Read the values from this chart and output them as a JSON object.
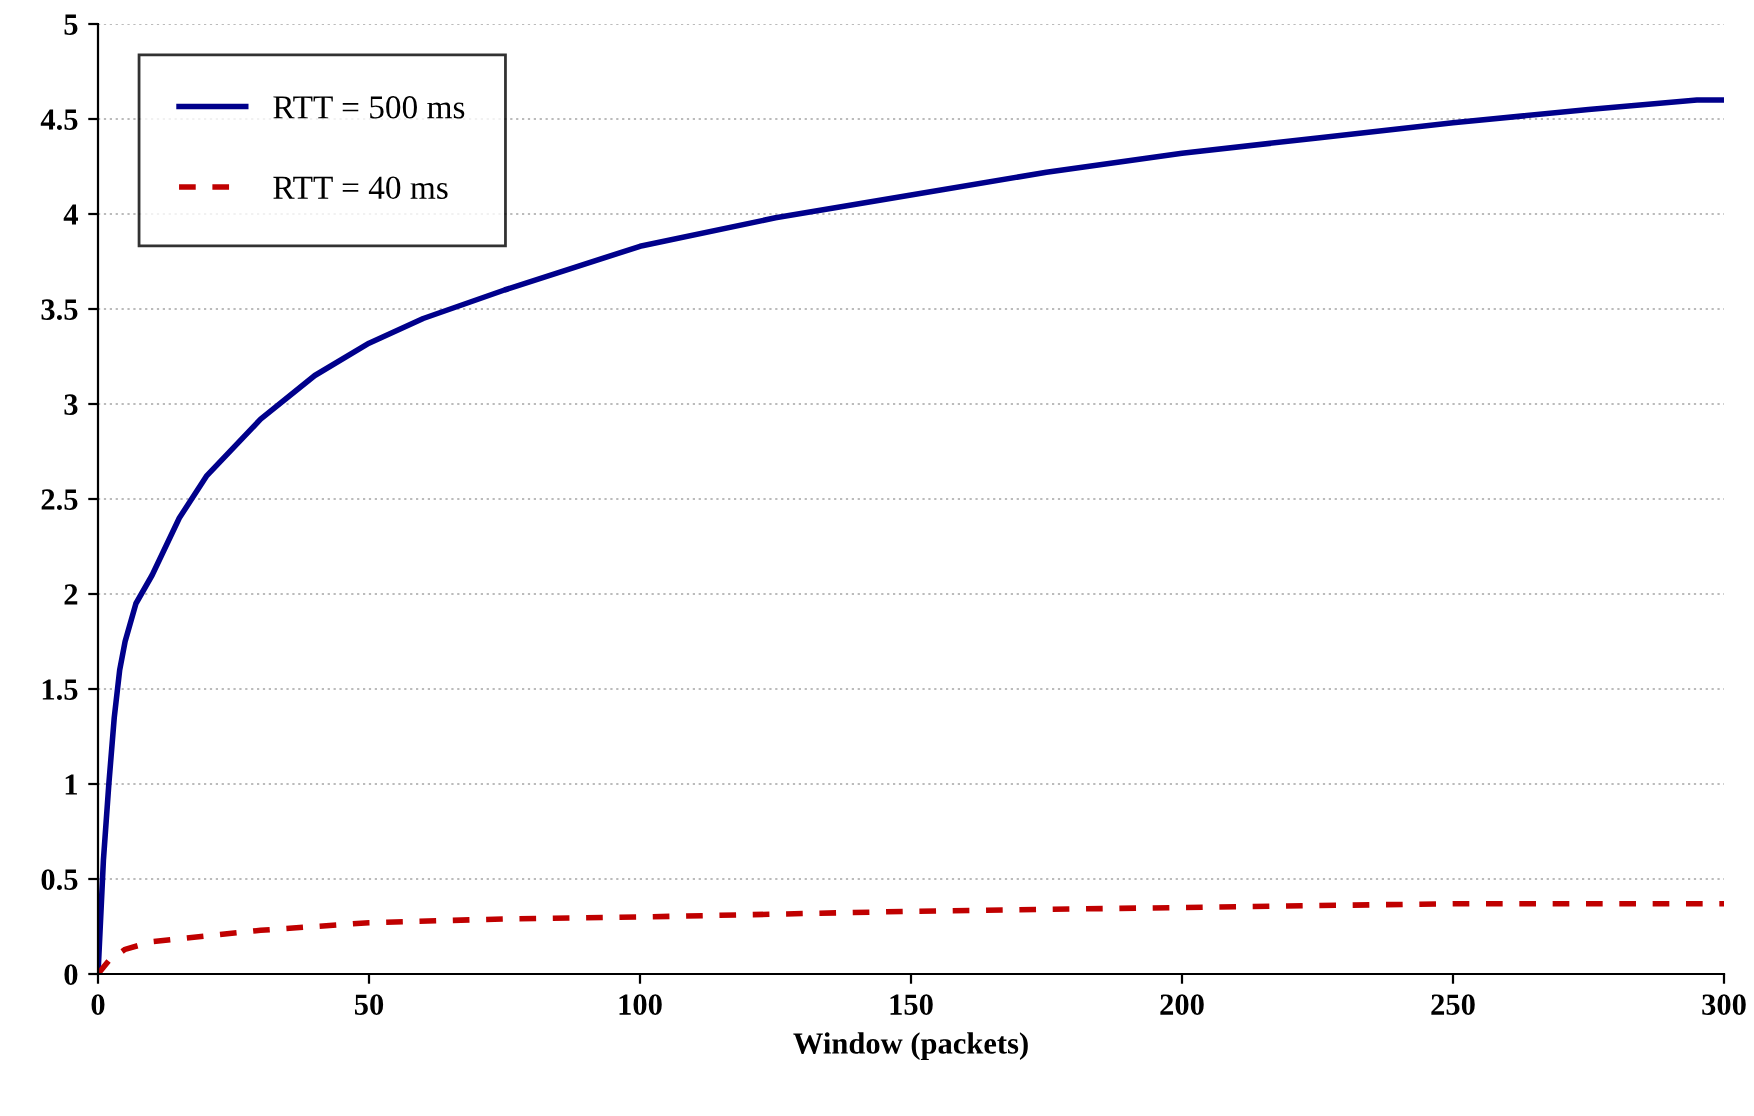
{
  "chart_data": {
    "type": "line",
    "xlabel": "Window (packets)",
    "xlim": [
      0,
      300
    ],
    "xticks": [
      0,
      50,
      100,
      150,
      200,
      250,
      300
    ],
    "ylim": [
      0,
      5
    ],
    "yticks": [
      0,
      0.5,
      1,
      1.5,
      2,
      2.5,
      3,
      3.5,
      4,
      4.5,
      5
    ],
    "grid": "y",
    "legend": "top left",
    "series": [
      {
        "name": "RTT = 500 ms",
        "color": "#00008b",
        "line_style": "solid",
        "x": [
          0,
          1,
          2,
          3,
          4,
          5,
          7,
          10,
          15,
          20,
          30,
          40,
          50,
          60,
          75,
          100,
          125,
          150,
          175,
          200,
          225,
          250,
          275,
          295,
          300
        ],
        "values": [
          0,
          0.6,
          1.0,
          1.35,
          1.6,
          1.75,
          1.95,
          2.1,
          2.4,
          2.62,
          2.92,
          3.15,
          3.32,
          3.45,
          3.6,
          3.83,
          3.98,
          4.1,
          4.22,
          4.32,
          4.4,
          4.48,
          4.55,
          4.6,
          4.6
        ]
      },
      {
        "name": "RTT = 40 ms",
        "color": "#c00000",
        "line_style": "dashed",
        "x": [
          0,
          2,
          5,
          10,
          20,
          30,
          50,
          75,
          100,
          150,
          200,
          250,
          300
        ],
        "values": [
          0,
          0.07,
          0.13,
          0.17,
          0.2,
          0.23,
          0.27,
          0.29,
          0.3,
          0.33,
          0.35,
          0.37,
          0.37
        ]
      }
    ]
  }
}
